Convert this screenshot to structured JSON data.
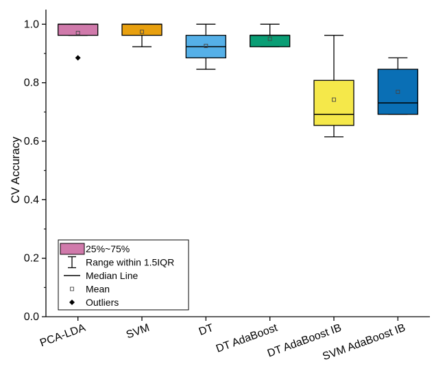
{
  "chart_data": {
    "type": "box",
    "ylabel": "CV Accuracy",
    "xlabel": "",
    "ylim": [
      0,
      1.05
    ],
    "yticks": [
      0.0,
      0.2,
      0.4,
      0.6,
      0.8,
      1.0
    ],
    "ytick_labels": [
      "0.0",
      "0.2",
      "0.4",
      "0.6",
      "0.8",
      "1.0"
    ],
    "grid": false,
    "legend_position": "bottom-left",
    "categories": [
      "PCA-LDA",
      "SVM",
      "DT",
      "DT AdaBoost",
      "DT AdaBoost IB",
      "SVM AdaBoost IB"
    ],
    "series": [
      {
        "category": "PCA-LDA",
        "color": "#D07AAB",
        "whisker_low": 0.962,
        "q1": 0.962,
        "median": 1.0,
        "q3": 1.0,
        "whisker_high": 1.0,
        "mean": 0.97,
        "outliers": [
          0.885
        ]
      },
      {
        "category": "SVM",
        "color": "#E8A00F",
        "whisker_low": 0.923,
        "q1": 0.962,
        "median": 1.0,
        "q3": 1.0,
        "whisker_high": 1.0,
        "mean": 0.974,
        "outliers": []
      },
      {
        "category": "DT",
        "color": "#55B0E8",
        "whisker_low": 0.846,
        "q1": 0.885,
        "median": 0.923,
        "q3": 0.962,
        "whisker_high": 1.0,
        "mean": 0.926,
        "outliers": []
      },
      {
        "category": "DT AdaBoost",
        "color": "#0A9E75",
        "whisker_low": 0.923,
        "q1": 0.923,
        "median": 0.962,
        "q3": 0.962,
        "whisker_high": 1.0,
        "mean": 0.95,
        "outliers": []
      },
      {
        "category": "DT AdaBoost IB",
        "color": "#F5E84A",
        "whisker_low": 0.615,
        "q1": 0.654,
        "median": 0.692,
        "q3": 0.808,
        "whisker_high": 0.962,
        "mean": 0.742,
        "outliers": []
      },
      {
        "category": "SVM AdaBoost IB",
        "color": "#0A6FB5",
        "whisker_low": 0.692,
        "q1": 0.692,
        "median": 0.731,
        "q3": 0.846,
        "whisker_high": 0.885,
        "mean": 0.769,
        "outliers": []
      }
    ],
    "legend": [
      {
        "kind": "box",
        "label": "25%~75%",
        "color": "#D07AAB"
      },
      {
        "kind": "whisker",
        "label": "Range within 1.5IQR"
      },
      {
        "kind": "median",
        "label": "Median Line"
      },
      {
        "kind": "mean",
        "label": "Mean"
      },
      {
        "kind": "outlier",
        "label": "Outliers"
      }
    ]
  }
}
